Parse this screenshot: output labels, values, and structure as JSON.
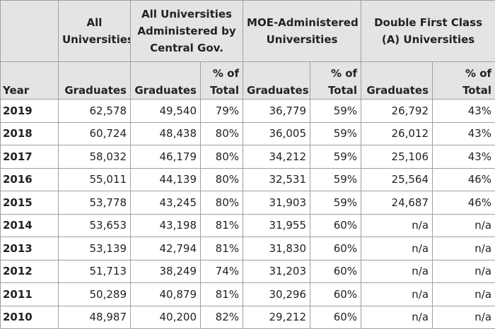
{
  "header": {
    "groups": [
      [
        "All",
        "Universities"
      ],
      [
        "All Universities",
        "Administered by",
        "Central Gov."
      ],
      [
        "MOE-Administered",
        "Universities"
      ],
      [
        "Double First Class",
        "(A) Universities"
      ]
    ],
    "columns": [
      [
        "Year"
      ],
      [
        "Graduates"
      ],
      [
        "Graduates"
      ],
      [
        "% of",
        "Total"
      ],
      [
        "Graduates"
      ],
      [
        "% of",
        "Total"
      ],
      [
        "Graduates"
      ],
      [
        "% of",
        "Total"
      ]
    ]
  },
  "table": {
    "rows": [
      [
        "2019",
        "62,578",
        "49,540",
        "79%",
        "36,779",
        "59%",
        "26,792",
        "43%"
      ],
      [
        "2018",
        "60,724",
        "48,438",
        "80%",
        "36,005",
        "59%",
        "26,012",
        "43%"
      ],
      [
        "2017",
        "58,032",
        "46,179",
        "80%",
        "34,212",
        "59%",
        "25,106",
        "43%"
      ],
      [
        "2016",
        "55,011",
        "44,139",
        "80%",
        "32,531",
        "59%",
        "25,564",
        "46%"
      ],
      [
        "2015",
        "53,778",
        "43,245",
        "80%",
        "31,903",
        "59%",
        "24,687",
        "46%"
      ],
      [
        "2014",
        "53,653",
        "43,198",
        "81%",
        "31,955",
        "60%",
        "n/a",
        "n/a"
      ],
      [
        "2013",
        "53,139",
        "42,794",
        "81%",
        "31,830",
        "60%",
        "n/a",
        "n/a"
      ],
      [
        "2012",
        "51,713",
        "38,249",
        "74%",
        "31,203",
        "60%",
        "n/a",
        "n/a"
      ],
      [
        "2011",
        "50,289",
        "40,879",
        "81%",
        "30,296",
        "60%",
        "n/a",
        "n/a"
      ],
      [
        "2010",
        "48,987",
        "40,200",
        "82%",
        "29,212",
        "60%",
        "n/a",
        "n/a"
      ]
    ]
  }
}
